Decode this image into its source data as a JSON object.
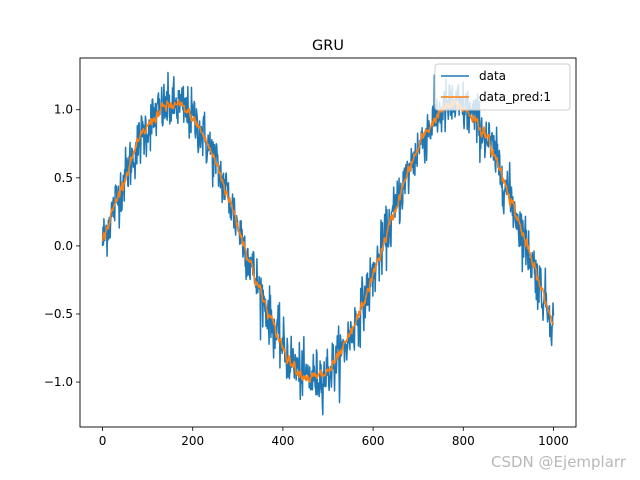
{
  "chart_data": {
    "type": "line",
    "title": "GRU",
    "xlabel": "",
    "ylabel": "",
    "xlim": [
      -50,
      1050
    ],
    "ylim": [
      -1.33,
      1.38
    ],
    "x_ticks": [
      0,
      200,
      400,
      600,
      800,
      1000
    ],
    "x_tick_labels": [
      "0",
      "200",
      "400",
      "600",
      "800",
      "1000"
    ],
    "y_ticks": [
      -1.0,
      -0.5,
      0.0,
      0.5,
      1.0
    ],
    "y_tick_labels": [
      "−1.0",
      "−0.5",
      "0.0",
      "0.5",
      "1.0"
    ],
    "legend_position": "upper right",
    "grid": false,
    "series": [
      {
        "name": "data",
        "color": "#1f77b4",
        "description": "noisy sine wave, 1000 samples, period ~625 points, noise amplitude ~0.1",
        "x_range": [
          0,
          1000
        ],
        "n_points": 1000,
        "period": 625,
        "amplitude": 1.0,
        "noise_std": 0.1
      },
      {
        "name": "data_pred:1",
        "color": "#ff7f0e",
        "description": "smoothed prediction following the sine",
        "x_range": [
          0,
          1000
        ],
        "n_points": 1000,
        "period": 625,
        "amplitude": 1.0,
        "noise_std": 0.025
      }
    ],
    "key_points": [
      {
        "x": 0,
        "y": 0.05
      },
      {
        "x": 190,
        "y": 1.0
      },
      {
        "x": 470,
        "y": -1.0
      },
      {
        "x": 780,
        "y": 1.0
      },
      {
        "x": 1000,
        "y": -0.5
      }
    ]
  },
  "watermark": "CSDN @Ejemplarr"
}
